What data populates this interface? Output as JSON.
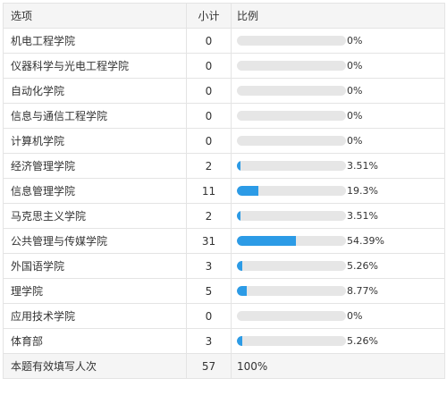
{
  "header": {
    "option": "选项",
    "count": "小计",
    "ratio": "比例"
  },
  "rows": [
    {
      "label": "机电工程学院",
      "count": "0",
      "pct": "0%",
      "value": 0
    },
    {
      "label": "仪器科学与光电工程学院",
      "count": "0",
      "pct": "0%",
      "value": 0
    },
    {
      "label": "自动化学院",
      "count": "0",
      "pct": "0%",
      "value": 0
    },
    {
      "label": "信息与通信工程学院",
      "count": "0",
      "pct": "0%",
      "value": 0
    },
    {
      "label": "计算机学院",
      "count": "0",
      "pct": "0%",
      "value": 0
    },
    {
      "label": "经济管理学院",
      "count": "2",
      "pct": "3.51%",
      "value": 3.51
    },
    {
      "label": "信息管理学院",
      "count": "11",
      "pct": "19.3%",
      "value": 19.3
    },
    {
      "label": "马克思主义学院",
      "count": "2",
      "pct": "3.51%",
      "value": 3.51
    },
    {
      "label": "公共管理与传媒学院",
      "count": "31",
      "pct": "54.39%",
      "value": 54.39
    },
    {
      "label": "外国语学院",
      "count": "3",
      "pct": "5.26%",
      "value": 5.26
    },
    {
      "label": "理学院",
      "count": "5",
      "pct": "8.77%",
      "value": 8.77
    },
    {
      "label": "应用技术学院",
      "count": "0",
      "pct": "0%",
      "value": 0
    },
    {
      "label": "体育部",
      "count": "3",
      "pct": "5.26%",
      "value": 5.26
    }
  ],
  "footer": {
    "label": "本题有效填写人次",
    "count": "57",
    "pct": "100%"
  },
  "colors": {
    "bar_fill": "#2c9be6",
    "bar_track": "#e6e6e6"
  }
}
